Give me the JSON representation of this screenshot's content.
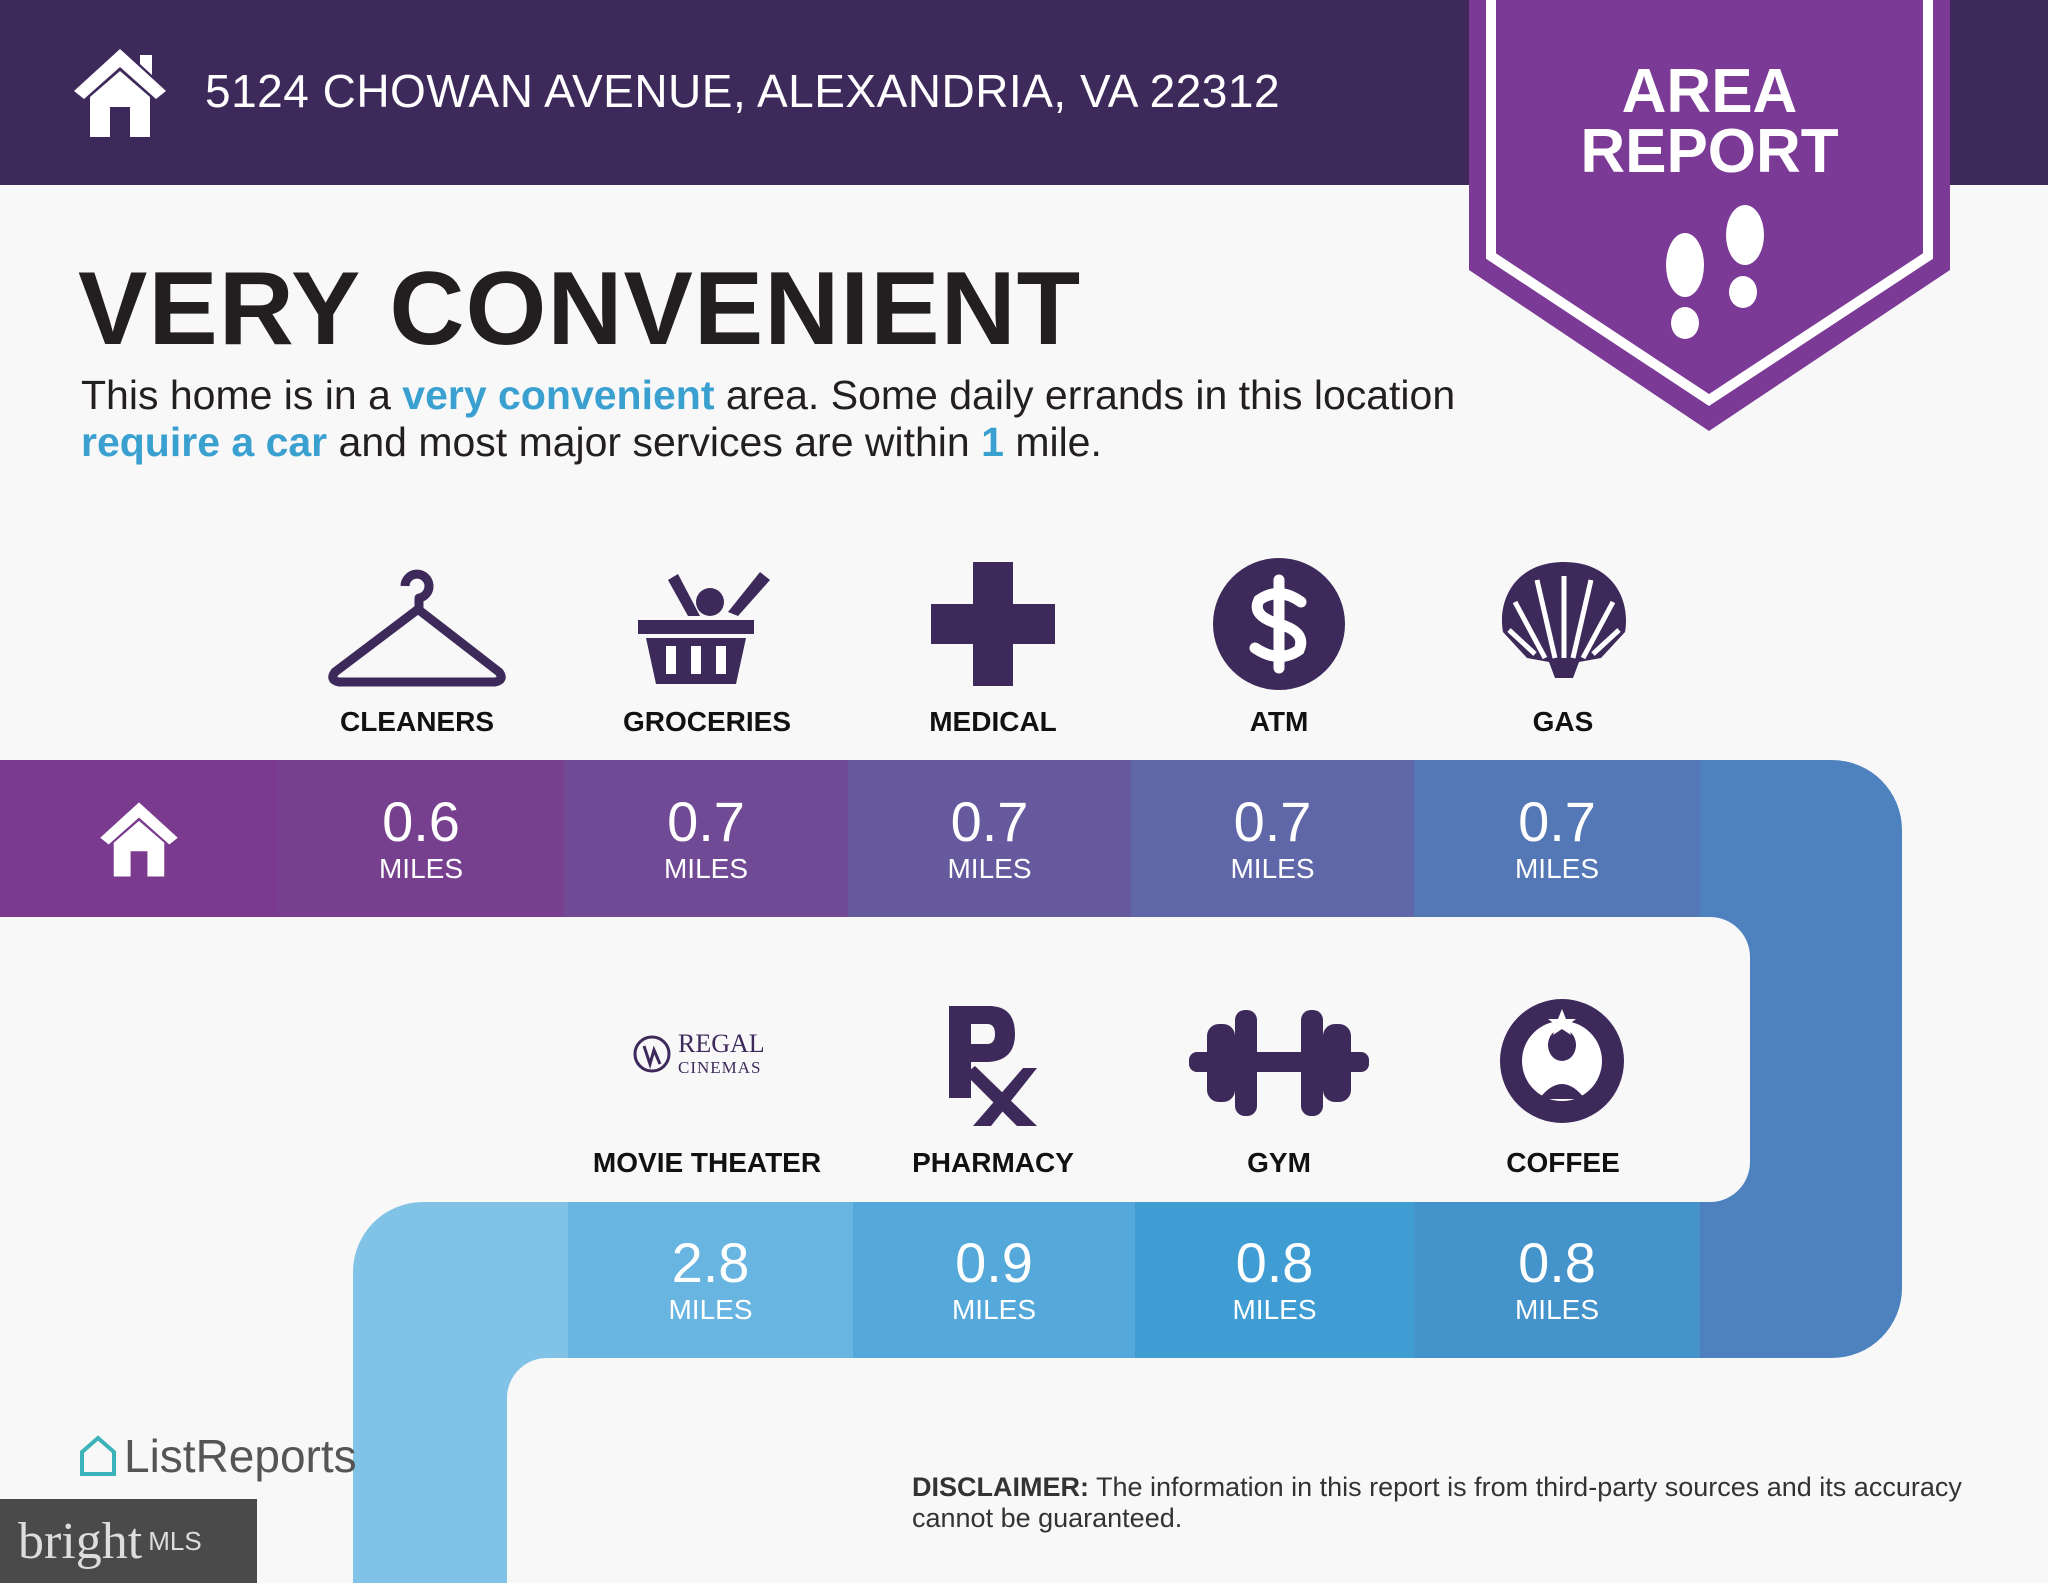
{
  "header": {
    "address": "5124 CHOWAN AVENUE, ALEXANDRIA, VA 22312",
    "icon": "home-icon",
    "banner_line1": "AREA",
    "banner_line2": "REPORT",
    "banner_icon": "footprints-icon"
  },
  "title": "VERY CONVENIENT",
  "description": {
    "p1": "This home is in a ",
    "h1": "very convenient",
    "p2": " area. Some daily errands in this location ",
    "h2": "require a car",
    "p3": " and most major services are within ",
    "h3": "1",
    "p4": " mile."
  },
  "row1": [
    {
      "label": "CLEANERS",
      "icon": "hanger-icon",
      "value": "0.6",
      "unit": "MILES"
    },
    {
      "label": "GROCERIES",
      "icon": "basket-icon",
      "value": "0.7",
      "unit": "MILES"
    },
    {
      "label": "MEDICAL",
      "icon": "cross-icon",
      "value": "0.7",
      "unit": "MILES"
    },
    {
      "label": "ATM",
      "icon": "dollar-icon",
      "value": "0.7",
      "unit": "MILES"
    },
    {
      "label": "GAS",
      "icon": "shell-icon",
      "value": "0.7",
      "unit": "MILES"
    }
  ],
  "row2": [
    {
      "label": "MOVIE THEATER",
      "icon": "regal-cinemas-logo",
      "logo_text1": "REGAL",
      "logo_text2": "CINEMAS",
      "value": "2.8",
      "unit": "MILES"
    },
    {
      "label": "PHARMACY",
      "icon": "rx-icon",
      "value": "0.9",
      "unit": "MILES"
    },
    {
      "label": "GYM",
      "icon": "dumbbell-icon",
      "value": "0.8",
      "unit": "MILES"
    },
    {
      "label": "COFFEE",
      "icon": "starbucks-logo",
      "value": "0.8",
      "unit": "MILES"
    }
  ],
  "footer": {
    "brand": "ListReports",
    "disclaimer_label": "DISCLAIMER:",
    "disclaimer": " The information in this report is from third-party sources and its accuracy cannot be guaranteed.",
    "watermark1": "bright",
    "watermark2": "MLS"
  },
  "colors": {
    "header": "#3e2a5a",
    "banner": "#7b3a96",
    "icon": "#3e2a5a",
    "highlight": "#3aa0d0"
  }
}
